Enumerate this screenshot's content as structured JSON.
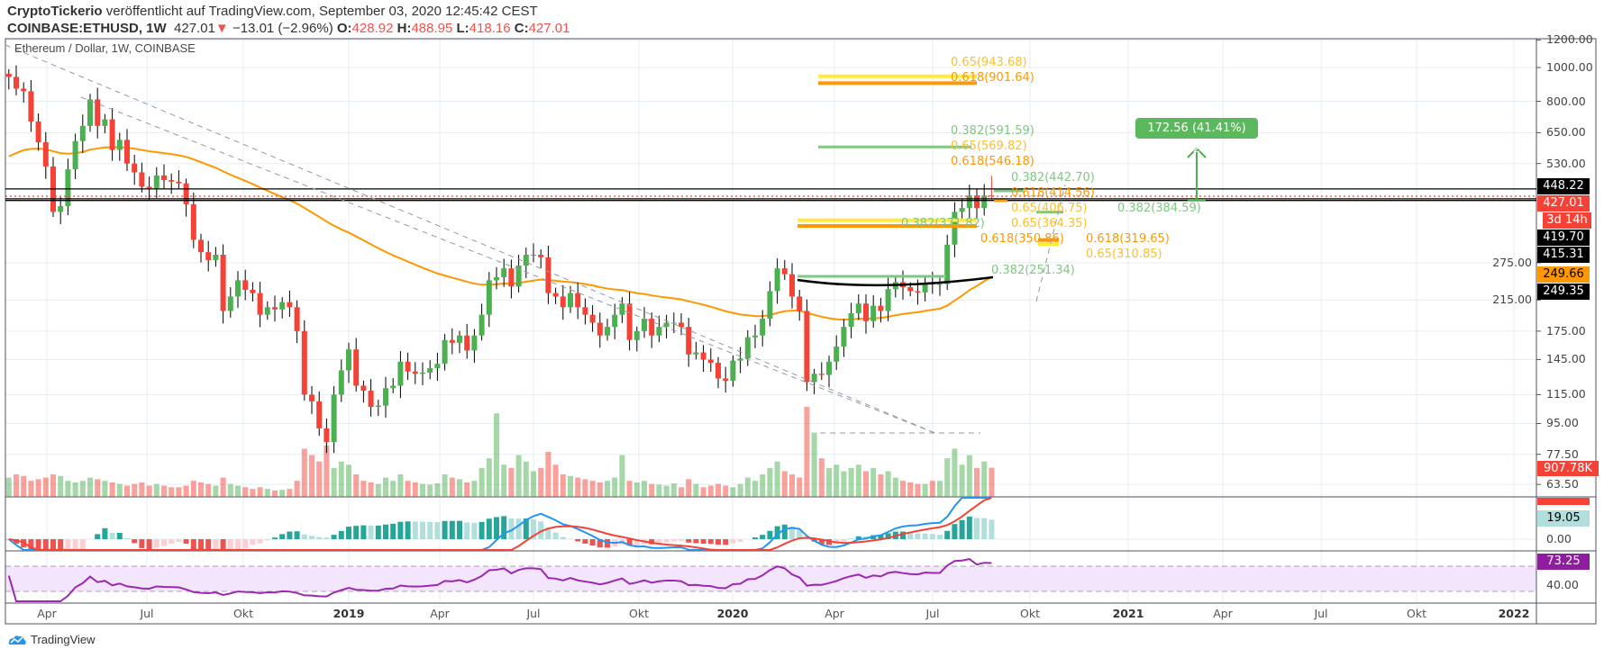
{
  "header": {
    "author": "CryptoTickerio",
    "published_text": "veröffentlicht auf TradingView.com, September 03, 2020 12:45:42 CEST",
    "symbol": "COINBASE:ETHUSD, 1W",
    "last": "427.01",
    "change": "−13.01 (−2.96%)",
    "o_label": "O:",
    "o": "428.92",
    "h_label": "H:",
    "h": "488.95",
    "l_label": "L:",
    "l": "418.16",
    "c_label": "C:",
    "c": "427.01"
  },
  "pane_title": "Ethereum / Dollar, 1W, COINBASE",
  "price_axis": [
    "1200.00",
    "1000.00",
    "800.00",
    "650.00",
    "530.00",
    "275.00",
    "215.00",
    "175.00",
    "145.00",
    "115.00",
    "95.00",
    "77.50",
    "63.50"
  ],
  "price_tags": {
    "resistance": "448.22",
    "last": "427.01",
    "countdown": "3d 14h",
    "line2": "419.70",
    "line3": "415.31",
    "ma": "249.66",
    "cup": "249.35",
    "volume": "907.78K",
    "macd_hist": "19.05",
    "rsi": "73.25"
  },
  "macd_axis": "0.00",
  "rsi_axis": "40.00",
  "time_axis": [
    {
      "label": "Apr",
      "year": false
    },
    {
      "label": "Jul",
      "year": false
    },
    {
      "label": "Okt",
      "year": false
    },
    {
      "label": "2019",
      "year": true
    },
    {
      "label": "Apr",
      "year": false
    },
    {
      "label": "Jul",
      "year": false
    },
    {
      "label": "Okt",
      "year": false
    },
    {
      "label": "2020",
      "year": true
    },
    {
      "label": "Apr",
      "year": false
    },
    {
      "label": "Jul",
      "year": false
    },
    {
      "label": "Okt",
      "year": false
    },
    {
      "label": "2021",
      "year": true
    },
    {
      "label": "Apr",
      "year": false
    },
    {
      "label": "Jul",
      "year": false
    },
    {
      "label": "Okt",
      "year": false
    },
    {
      "label": "2022",
      "year": true
    }
  ],
  "fib_labels": {
    "f1": "0.65(943.68)",
    "f2": "0.618(901.64)",
    "f3": "0.382(591.59)",
    "f4": "0.65(569.82)",
    "f5": "0.618(546.18)",
    "f6": "0.382(442.70)",
    "f7": "0.618(414.56)",
    "f8": "0.65(406.75)",
    "f9": "0.382(384.59)",
    "f10": "0.382(371.82)",
    "f11": "0.65(364.35)",
    "f12": "0.618(350.86)",
    "f13": "0.618(319.65)",
    "f14": "0.65(310.85)",
    "f15": "0.382(251.34)"
  },
  "measure": "172.56 (41.41%) 17256",
  "branding": "TradingView",
  "colors": {
    "up": "#4caf50",
    "down": "#f44336",
    "ma": "#ff9800",
    "macd": "#2196f3",
    "signal": "#f44336",
    "rsi": "#9c27b0"
  },
  "chart_data": {
    "type": "candlestick",
    "title": "Ethereum / Dollar, 1W, COINBASE",
    "first_week": "2018-02-12",
    "scale": "log",
    "closes": [
      940,
      870,
      855,
      700,
      610,
      520,
      385,
      400,
      510,
      615,
      680,
      810,
      680,
      710,
      580,
      620,
      530,
      500,
      455,
      450,
      490,
      475,
      470,
      465,
      405,
      320,
      295,
      280,
      290,
      200,
      220,
      245,
      230,
      225,
      195,
      205,
      202,
      212,
      205,
      175,
      115,
      110,
      92,
      84,
      115,
      135,
      155,
      122,
      118,
      106,
      107,
      120,
      122,
      143,
      134,
      132,
      133,
      137,
      141,
      165,
      162,
      170,
      154,
      170,
      195,
      245,
      250,
      265,
      235,
      270,
      290,
      290,
      285,
      225,
      220,
      205,
      225,
      205,
      195,
      185,
      170,
      180,
      195,
      210,
      165,
      175,
      190,
      170,
      180,
      185,
      185,
      180,
      150,
      152,
      145,
      142,
      128,
      126,
      144,
      146,
      168,
      170,
      190,
      228,
      265,
      255,
      220,
      200,
      125,
      132,
      131,
      143,
      158,
      180,
      197,
      210,
      187,
      207,
      200,
      231,
      242,
      234,
      228,
      226,
      241,
      239,
      239,
      310,
      385,
      395,
      429,
      395,
      428.92,
      427.01
    ],
    "last_candle": {
      "open": 428.92,
      "high": 488.95,
      "low": 418.16,
      "close": 427.01
    },
    "volume_k": [
      600,
      700,
      650,
      500,
      550,
      600,
      700,
      650,
      500,
      450,
      500,
      600,
      550,
      500,
      450,
      400,
      350,
      400,
      450,
      350,
      400,
      350,
      300,
      300,
      350,
      500,
      450,
      400,
      350,
      600,
      400,
      350,
      300,
      250,
      300,
      250,
      200,
      220,
      250,
      500,
      1500,
      1300,
      1100,
      1600,
      900,
      1100,
      1000,
      700,
      500,
      450,
      400,
      600,
      500,
      700,
      500,
      450,
      400,
      380,
      420,
      700,
      600,
      550,
      450,
      500,
      900,
      1200,
      2600,
      1000,
      900,
      1300,
      1100,
      800,
      900,
      1400,
      1000,
      700,
      650,
      600,
      550,
      500,
      450,
      500,
      600,
      1300,
      500,
      450,
      500,
      400,
      380,
      350,
      420,
      300,
      550,
      400,
      300,
      350,
      400,
      350,
      300,
      400,
      600,
      500,
      700,
      900,
      1100,
      800,
      700,
      600,
      2800,
      2000,
      1200,
      900,
      1000,
      800,
      900,
      1000,
      800,
      900,
      700,
      800,
      600,
      500,
      450,
      400,
      400,
      500,
      500,
      1200,
      1500,
      1000,
      1300,
      900,
      1100,
      907.78
    ],
    "indicators": [
      "MA 50 (orange)",
      "Volume",
      "MACD (12,26,9)",
      "RSI (14)"
    ]
  }
}
